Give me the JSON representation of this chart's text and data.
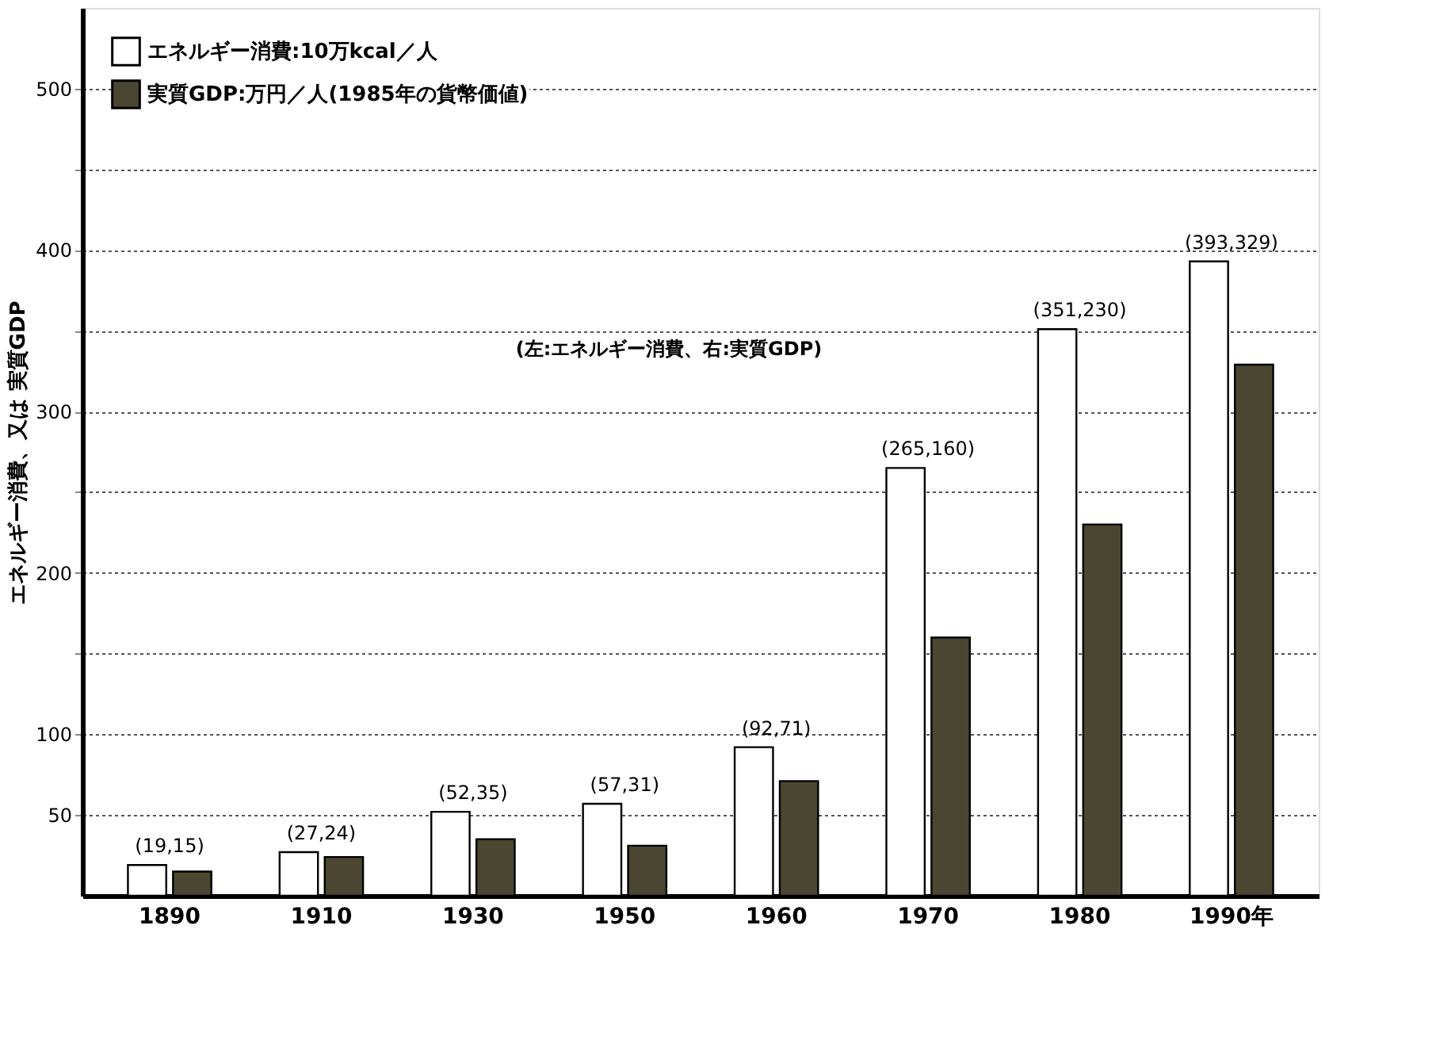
{
  "chart_data": {
    "type": "bar",
    "categories": [
      "1890",
      "1910",
      "1930",
      "1950",
      "1960",
      "1970",
      "1980",
      "1990年"
    ],
    "series": [
      {
        "name": "エネルギー消費:10万kcal／人",
        "color": "#ffffff",
        "values": [
          19,
          27,
          52,
          57,
          92,
          265,
          351,
          393
        ]
      },
      {
        "name": "実質GDP:万円／人(1985年の貨幣価値)",
        "color": "#4a4632",
        "values": [
          15,
          24,
          35,
          31,
          71,
          160,
          230,
          329
        ]
      }
    ],
    "ylabel": "エネルギー消費、又は 実質GDP",
    "ylim": [
      0,
      550
    ],
    "yticks": [
      50,
      100,
      {
        "value": 150,
        "label": null
      },
      200,
      {
        "value": 250,
        "label": null
      },
      300,
      {
        "value": 350,
        "label": null
      },
      400,
      {
        "value": 450,
        "label": null
      },
      500
    ],
    "grid": "y",
    "legend": "top left",
    "annotations": [
      {
        "text": "(19,15)",
        "x": "1890",
        "y": 19
      },
      {
        "text": "(27,24)",
        "x": "1910",
        "y": 27
      },
      {
        "text": "(52,35)",
        "x": "1930",
        "y": 52
      },
      {
        "text": "(57,31)",
        "x": "1950",
        "y": 57
      },
      {
        "text": "(92,71)",
        "x": "1960",
        "y": 92
      },
      {
        "text": "(265,160)",
        "x": "1970",
        "y": 265
      },
      {
        "text": "(351,230)",
        "x": "1980",
        "y": 351
      },
      {
        "text": "(393,329)",
        "x": "1990年",
        "y": 393
      },
      "(左:エネルギー消費、右:実質GDP)"
    ]
  }
}
